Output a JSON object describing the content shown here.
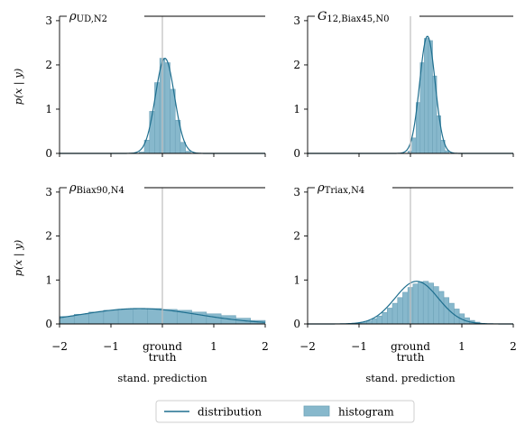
{
  "figure": {
    "ylabel": "p(x | y)",
    "xlabel": "stand. prediction",
    "ground_truth_label_line1": "ground",
    "ground_truth_label_line2": "truth"
  },
  "legend": {
    "line_label": "distribution",
    "hist_label": "histogram"
  },
  "colors": {
    "line": "#1f6f8f",
    "hist": "#87b8cc",
    "hist_edge": "#6fa3b9",
    "truth": "#bdbdbd"
  },
  "chart_data": [
    {
      "type": "area",
      "title_symbol": "ρ",
      "title_sub": "UD,N2",
      "xlim": [
        -2,
        2
      ],
      "ylim": [
        0,
        3.1
      ],
      "xticks": [
        "−2",
        "−1",
        "0",
        "1",
        "2"
      ],
      "yticks": [
        "0",
        "1",
        "2",
        "3"
      ],
      "show_x_ticklabels": false,
      "show_ylabel": true,
      "ground_truth": 0,
      "dist": {
        "mean": 0.05,
        "std": 0.185,
        "peak": 2.15
      },
      "hist_bins": [
        -0.45,
        0.55,
        0.1
      ],
      "hist_values": [
        0.03,
        0.3,
        0.95,
        1.6,
        2.15,
        2.05,
        1.45,
        0.75,
        0.25,
        0.05
      ]
    },
    {
      "type": "area",
      "title_symbol": "G",
      "title_sub": "12,Biax45,N0",
      "xlim": [
        -2,
        2
      ],
      "ylim": [
        0,
        3.1
      ],
      "xticks": [
        "−2",
        "−1",
        "0",
        "1",
        "2"
      ],
      "yticks": [
        "0",
        "1",
        "2",
        "3"
      ],
      "show_x_ticklabels": false,
      "show_ylabel": false,
      "ground_truth": 0,
      "dist": {
        "mean": 0.33,
        "std": 0.15,
        "peak": 2.65
      },
      "hist_bins": [
        -0.05,
        0.75,
        0.08
      ],
      "hist_values": [
        0.05,
        0.35,
        1.15,
        2.05,
        2.6,
        2.55,
        1.75,
        0.85,
        0.3,
        0.06
      ]
    },
    {
      "type": "area",
      "title_symbol": "ρ",
      "title_sub": "Biax90,N4",
      "xlim": [
        -2,
        2
      ],
      "ylim": [
        0,
        3.1
      ],
      "xticks": [
        "−2",
        "−1",
        "0",
        "1",
        "2"
      ],
      "yticks": [
        "0",
        "1",
        "2",
        "3"
      ],
      "show_x_ticklabels": true,
      "show_ylabel": true,
      "ground_truth": 0,
      "dist": {
        "mean": -0.45,
        "std": 1.15,
        "peak": 0.35
      },
      "hist_bins": [
        -2.0,
        2.0,
        0.2857
      ],
      "hist_values": [
        0.17,
        0.22,
        0.27,
        0.31,
        0.33,
        0.35,
        0.35,
        0.33,
        0.31,
        0.27,
        0.23,
        0.19,
        0.13,
        0.08
      ]
    },
    {
      "type": "area",
      "title_symbol": "ρ",
      "title_sub": "Triax,N4",
      "xlim": [
        -2,
        2
      ],
      "ylim": [
        0,
        3.1
      ],
      "xticks": [
        "−2",
        "−1",
        "0",
        "1",
        "2"
      ],
      "yticks": [
        "0",
        "1",
        "2",
        "3"
      ],
      "show_x_ticklabels": true,
      "show_ylabel": false,
      "ground_truth": 0,
      "dist": {
        "mean": 0.12,
        "std": 0.42,
        "peak": 0.97
      },
      "hist_bins": [
        -1.05,
        1.35,
        0.1
      ],
      "hist_values": [
        0.02,
        0.04,
        0.07,
        0.12,
        0.18,
        0.26,
        0.36,
        0.47,
        0.6,
        0.72,
        0.83,
        0.91,
        0.96,
        0.97,
        0.93,
        0.85,
        0.74,
        0.6,
        0.47,
        0.34,
        0.23,
        0.14,
        0.08,
        0.04
      ]
    }
  ]
}
